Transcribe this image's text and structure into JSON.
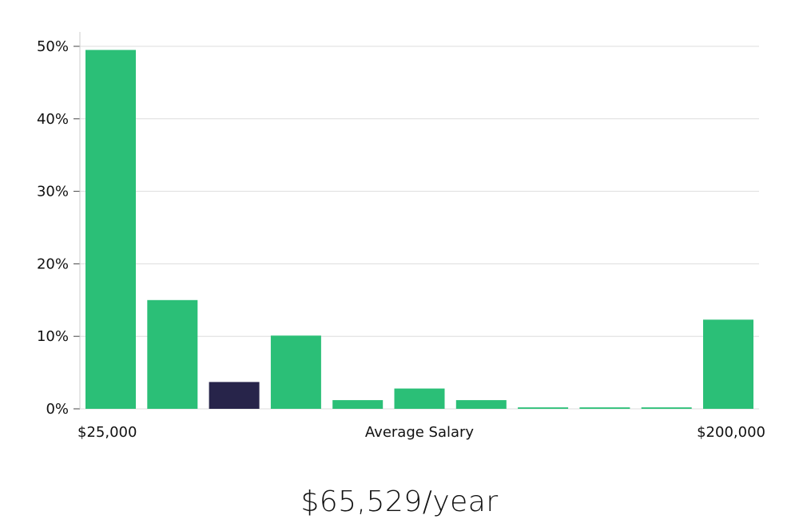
{
  "summary": {
    "average_salary_text": "$65,529/year"
  },
  "colors": {
    "bar": "#2bbf77",
    "highlight": "#27244a",
    "grid": "#dddddd",
    "axis": "#cccccc"
  },
  "chart_data": {
    "type": "bar",
    "y_unit": "%",
    "ylim": [
      0,
      50
    ],
    "yticks": [
      0,
      10,
      20,
      30,
      40,
      50
    ],
    "ytick_labels": [
      "0%",
      "10%",
      "20%",
      "30%",
      "40%",
      "50%"
    ],
    "x_start_label": "$25,000",
    "xlabel": "Average Salary",
    "x_end_label": "$200,000",
    "values": [
      49.5,
      15.0,
      3.7,
      10.1,
      1.2,
      2.8,
      1.2,
      0.2,
      0.2,
      0.2,
      12.3
    ],
    "highlight_index": 2,
    "grid": true,
    "legend": "none"
  }
}
